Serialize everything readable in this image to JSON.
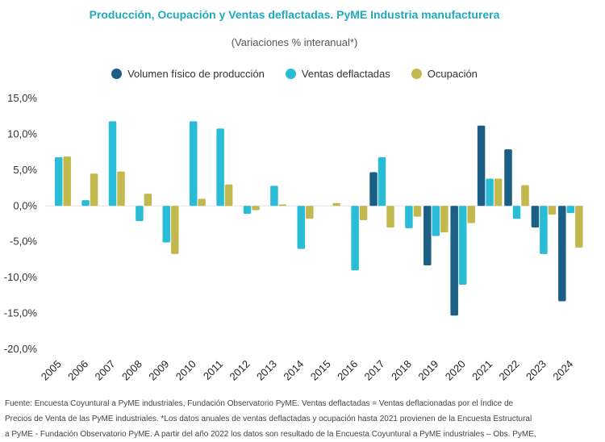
{
  "chart_data": {
    "type": "bar",
    "title": "Producción, Ocupación y Ventas deflactadas. PyME Industria manufacturera",
    "subtitle": "(Variaciones % interanual*)",
    "categories": [
      "2005",
      "2006",
      "2007",
      "2008",
      "2009",
      "2010",
      "2011",
      "2012",
      "2013",
      "2014",
      "2015",
      "2016",
      "2017",
      "2018",
      "2019",
      "2020",
      "2021",
      "2022",
      "2023",
      "2024"
    ],
    "series": [
      {
        "name": "Volumen físico de producción",
        "color": "#1c5f86",
        "values": [
          null,
          null,
          null,
          null,
          null,
          null,
          null,
          null,
          null,
          null,
          null,
          null,
          4.7,
          null,
          -8.3,
          -15.3,
          11.2,
          7.9,
          -3.0,
          -13.3
        ]
      },
      {
        "name": "Ventas deflactadas",
        "color": "#28bcd6",
        "values": [
          6.8,
          0.8,
          11.8,
          -2.1,
          -5.1,
          11.8,
          10.8,
          -1.1,
          2.8,
          -6.0,
          0,
          -9.0,
          6.8,
          -3.1,
          -4.2,
          -11.0,
          3.8,
          -1.8,
          -6.7,
          -1.0
        ]
      },
      {
        "name": "Ocupación",
        "color": "#c3b84d",
        "values": [
          6.9,
          4.5,
          4.8,
          1.7,
          -6.7,
          1.0,
          3.0,
          -0.6,
          0.2,
          -1.8,
          0.4,
          -2.0,
          -3.0,
          -1.5,
          -3.7,
          -2.4,
          3.8,
          2.9,
          -1.2,
          -5.8
        ]
      }
    ],
    "ylim": [
      -20,
      15
    ],
    "yticks": [
      15,
      10,
      5,
      0,
      -5,
      -10,
      -15,
      -20
    ],
    "ytick_labels": [
      "15,0%",
      "10,0%",
      "5,0%",
      "0,0%",
      "-5,0%",
      "-10,0%",
      "-15,0%",
      "-20,0%"
    ],
    "legend_position": "top-center",
    "grid": false
  },
  "footnote": {
    "lines": [
      "Fuente: Encuesta Coyuntural a PyME industriales, Fundación Observatorio PyME. Ventas deflactadas = Ventas deflacionadas por el Índice de",
      "Precios de Venta de las PyME industriales. *Los datos anuales de ventas deflactadas y ocupación hasta 2021 provienen de la Encuesta Estructural",
      "a PyME - Fundación Observatorio PyME. A partir del año 2022 los datos son resultado de la Encuesta Coyuntural a PyME industriales – Obs. PyME,"
    ]
  }
}
